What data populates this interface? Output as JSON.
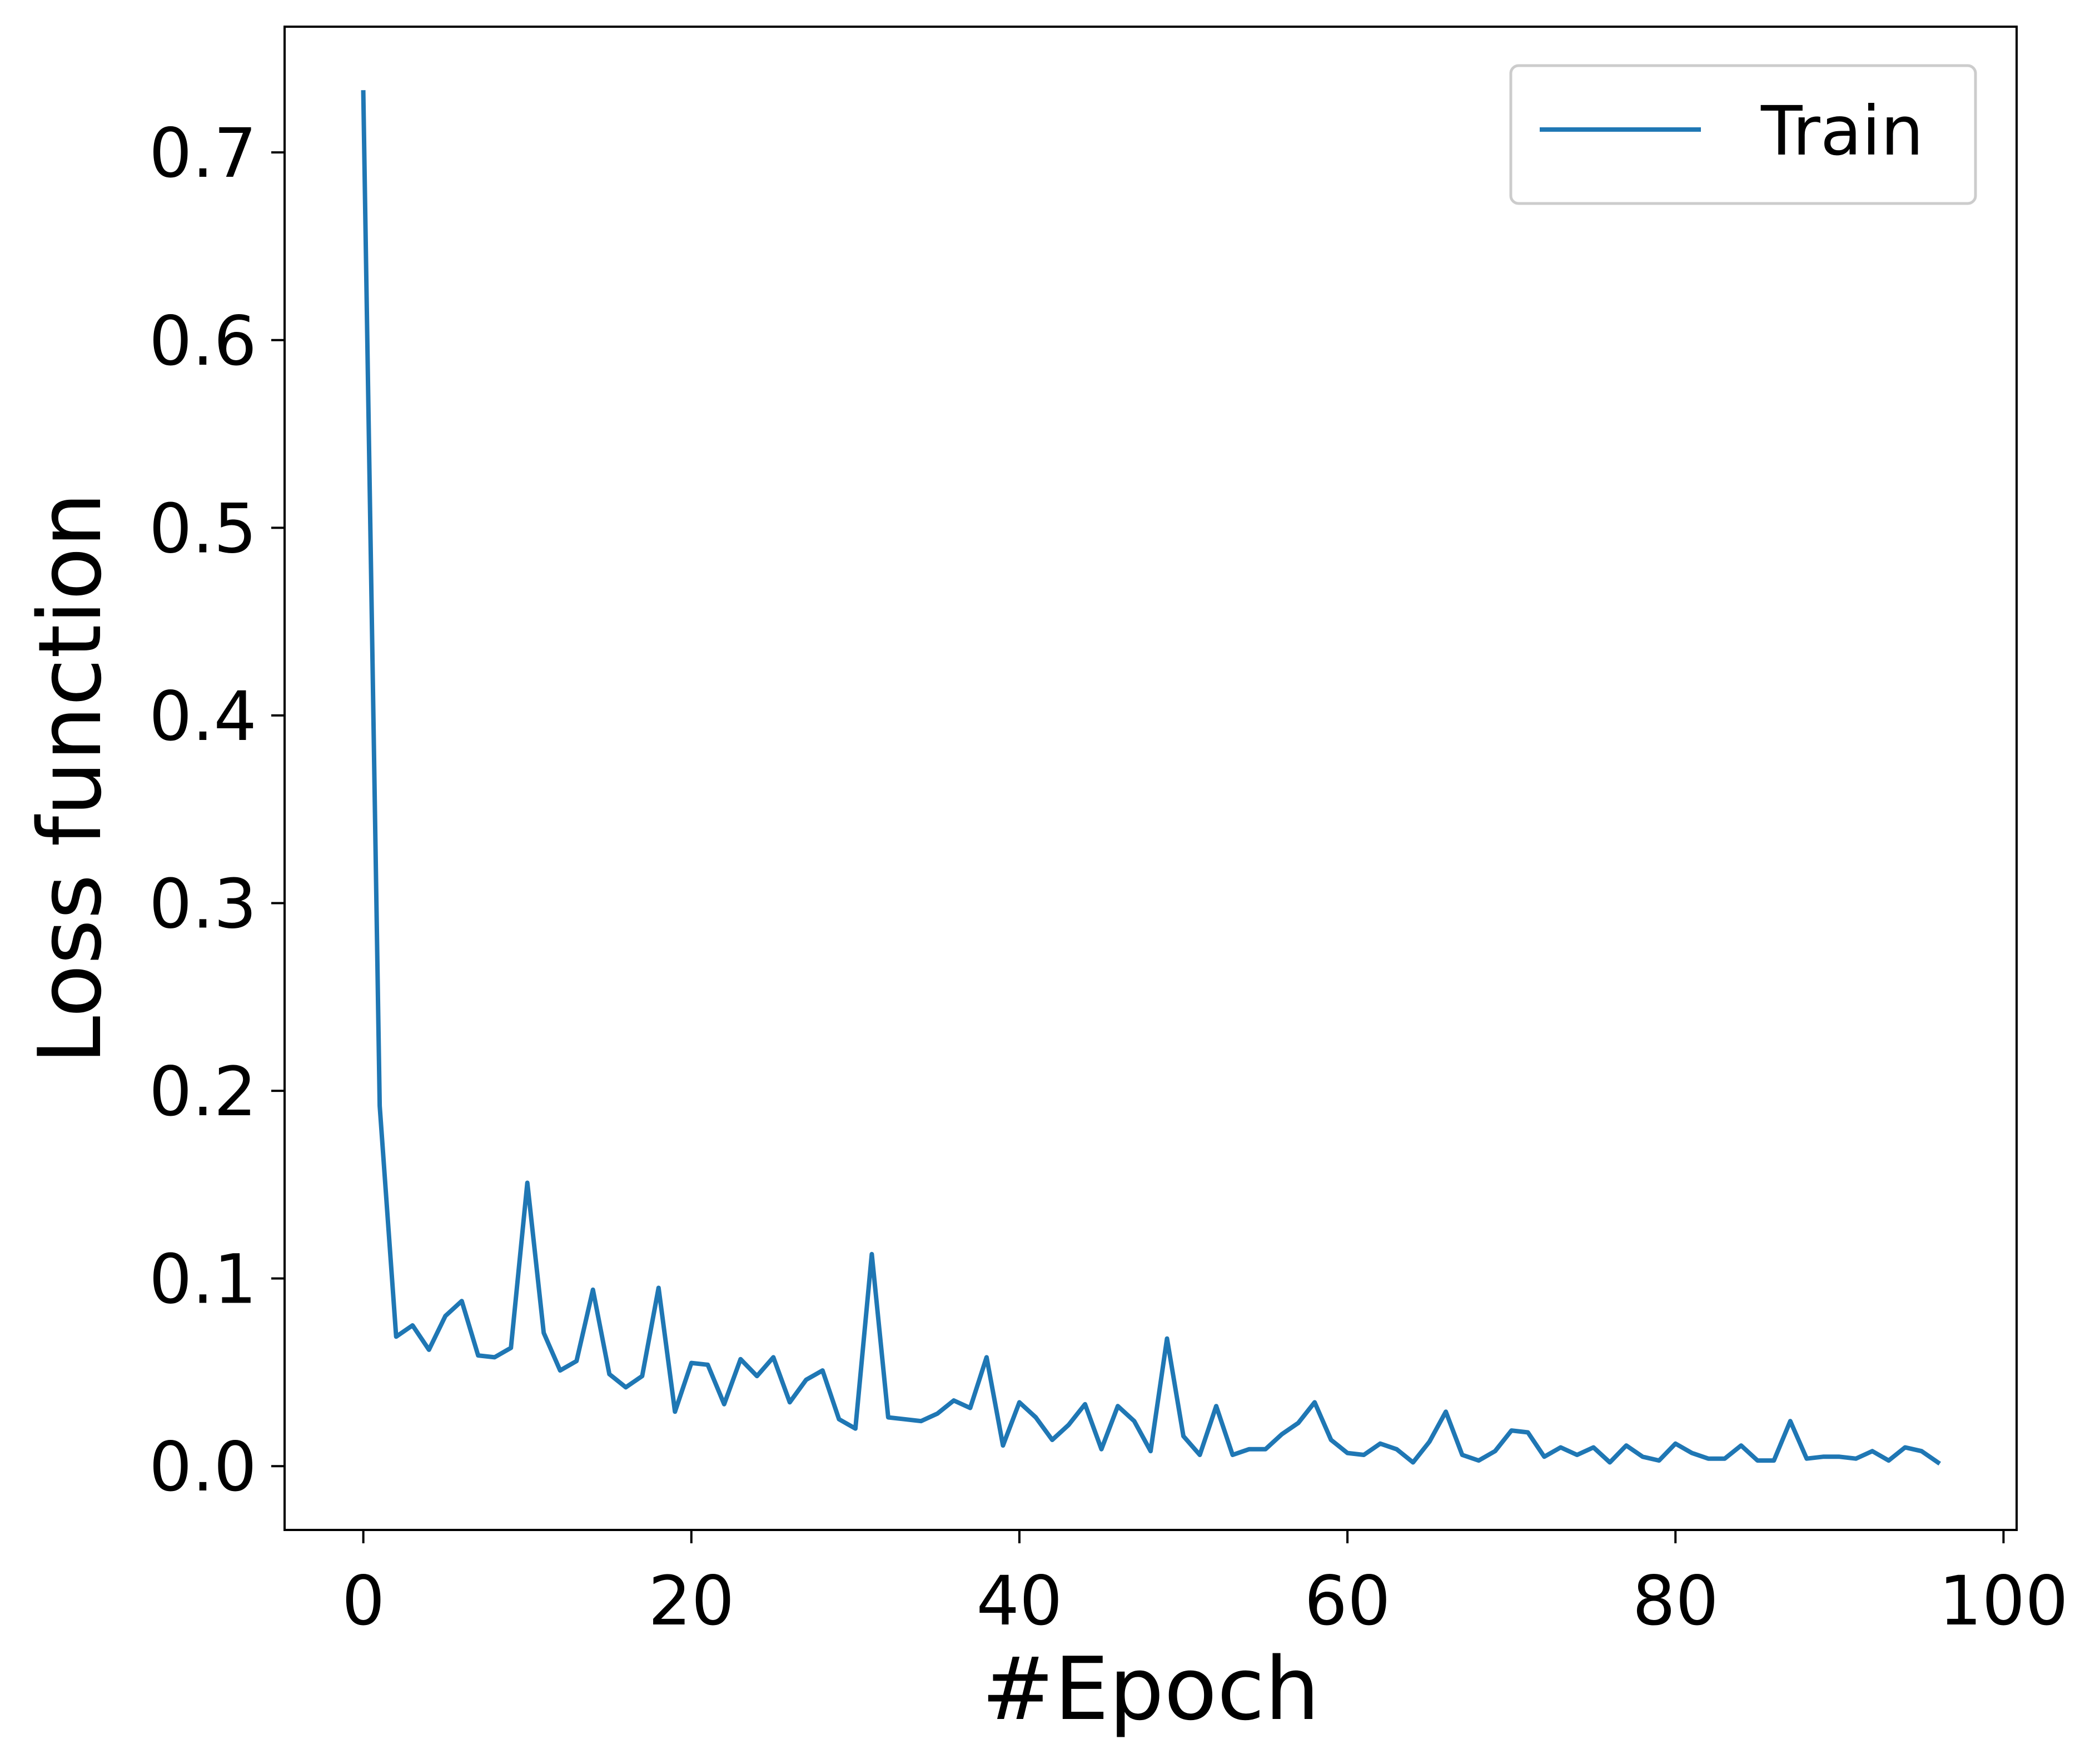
{
  "chart_data": {
    "type": "line",
    "title": "",
    "xlabel": "#Epoch",
    "ylabel": "Loss function",
    "xlim": [
      -4.8,
      100.8
    ],
    "ylim": [
      -0.034,
      0.767
    ],
    "xticks": [
      0,
      20,
      40,
      60,
      80,
      100
    ],
    "xtick_labels": [
      "0",
      "20",
      "40",
      "60",
      "80",
      "100"
    ],
    "yticks": [
      0.0,
      0.1,
      0.2,
      0.3,
      0.4,
      0.5,
      0.6,
      0.7
    ],
    "ytick_labels": [
      "0.0",
      "0.1",
      "0.2",
      "0.3",
      "0.4",
      "0.5",
      "0.6",
      "0.7"
    ],
    "grid": false,
    "legend_position": "top-right",
    "colors": {
      "series": "#1f77b4",
      "axes": "#000000",
      "legend_border": "#cccccc"
    },
    "x": [
      0,
      1,
      2,
      3,
      4,
      5,
      6,
      7,
      8,
      9,
      10,
      11,
      12,
      13,
      14,
      15,
      16,
      17,
      18,
      19,
      20,
      21,
      22,
      23,
      24,
      25,
      26,
      27,
      28,
      29,
      30,
      31,
      32,
      33,
      34,
      35,
      36,
      37,
      38,
      39,
      40,
      41,
      42,
      43,
      44,
      45,
      46,
      47,
      48,
      49,
      50,
      51,
      52,
      53,
      54,
      55,
      56,
      57,
      58,
      59,
      60,
      61,
      62,
      63,
      64,
      65,
      66,
      67,
      68,
      69,
      70,
      71,
      72,
      73,
      74,
      75,
      76,
      77,
      78,
      79,
      80,
      81,
      82,
      83,
      84,
      85,
      86,
      87,
      88,
      89,
      90,
      91,
      92,
      93,
      94,
      95,
      96
    ],
    "series": [
      {
        "name": "Train",
        "values": [
          0.732,
          0.192,
          0.069,
          0.075,
          0.062,
          0.08,
          0.088,
          0.059,
          0.058,
          0.063,
          0.151,
          0.071,
          0.051,
          0.056,
          0.094,
          0.049,
          0.042,
          0.048,
          0.095,
          0.029,
          0.055,
          0.054,
          0.033,
          0.057,
          0.048,
          0.058,
          0.034,
          0.046,
          0.051,
          0.025,
          0.02,
          0.113,
          0.026,
          0.025,
          0.024,
          0.028,
          0.035,
          0.031,
          0.058,
          0.011,
          0.034,
          0.026,
          0.014,
          0.022,
          0.033,
          0.009,
          0.032,
          0.024,
          0.008,
          0.068,
          0.016,
          0.006,
          0.032,
          0.006,
          0.009,
          0.009,
          0.017,
          0.023,
          0.034,
          0.014,
          0.007,
          0.006,
          0.012,
          0.009,
          0.002,
          0.013,
          0.029,
          0.006,
          0.003,
          0.008,
          0.019,
          0.018,
          0.005,
          0.01,
          0.006,
          0.01,
          0.002,
          0.011,
          0.005,
          0.003,
          0.012,
          0.007,
          0.004,
          0.004,
          0.011,
          0.003,
          0.003,
          0.024,
          0.004,
          0.005,
          0.005,
          0.004,
          0.008,
          0.003,
          0.01,
          0.008,
          0.002
        ]
      }
    ]
  }
}
